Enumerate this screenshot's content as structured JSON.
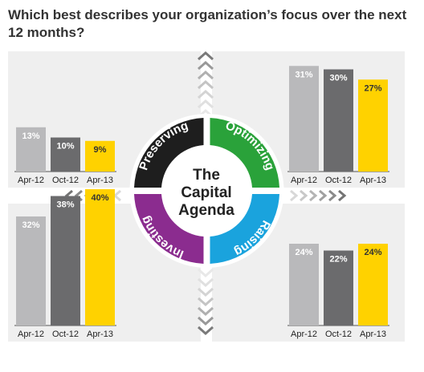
{
  "title": "Which best describes your organization’s focus over the next 12 months?",
  "center_label": [
    "The",
    "Capital",
    "Agenda"
  ],
  "colors": {
    "apr12": "#b9b9bb",
    "oct12": "#6b6b6d",
    "apr13": "#ffd200",
    "panel_bg": "#efefef",
    "preserving": "#1e1e1e",
    "optimizing": "#2aa23a",
    "raising": "#1aa3dd",
    "investing": "#8b2c8f"
  },
  "chart_data": {
    "type": "bar",
    "categories": [
      "Apr-12",
      "Oct-12",
      "Apr-13"
    ],
    "value_suffix": "%",
    "panels": [
      {
        "name": "Preserving",
        "values": [
          13,
          10,
          9
        ]
      },
      {
        "name": "Optimizing",
        "values": [
          31,
          30,
          27
        ]
      },
      {
        "name": "Investing",
        "values": [
          32,
          38,
          40
        ]
      },
      {
        "name": "Raising",
        "values": [
          24,
          22,
          24
        ]
      }
    ]
  }
}
